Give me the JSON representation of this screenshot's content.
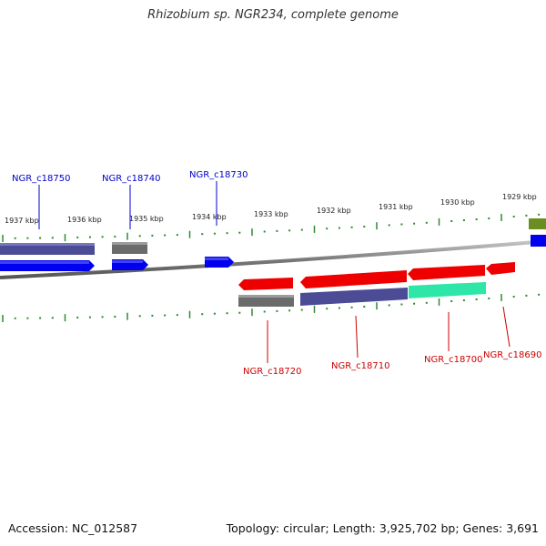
{
  "header": {
    "title": "Rhizobium sp. NGR234, complete genome"
  },
  "footer": {
    "accession": "Accession: NC_012587",
    "summary": "Topology: circular; Length: 3,925,702 bp; Genes: 3,691"
  },
  "colors": {
    "backbone": "#8c8c8c",
    "tick": "#2e8b2e",
    "gene_forward": "#0000ee",
    "gene_reverse": "#ee0000",
    "cds_slate": "#4b4b96",
    "cds_gray": "#6b6b6b",
    "cds_aqua": "#2ee6a8",
    "cds_olive": "#6b8e23",
    "label_forward": "#0000cc",
    "label_reverse": "#cc0000"
  },
  "scale": {
    "unit": "kbp",
    "upper_ticks": [
      "1937 kbp",
      "1936 kbp",
      "1935 kbp",
      "1934 kbp",
      "1933 kbp",
      "1932 kbp",
      "1931 kbp",
      "1930 kbp",
      "1929 kbp"
    ]
  },
  "genes": {
    "forward": [
      {
        "id": "NGR_c18750"
      },
      {
        "id": "NGR_c18740"
      },
      {
        "id": "NGR_c18730"
      }
    ],
    "reverse": [
      {
        "id": "NGR_c18720"
      },
      {
        "id": "NGR_c18710"
      },
      {
        "id": "NGR_c18700"
      },
      {
        "id": "NGR_c18690"
      }
    ]
  }
}
